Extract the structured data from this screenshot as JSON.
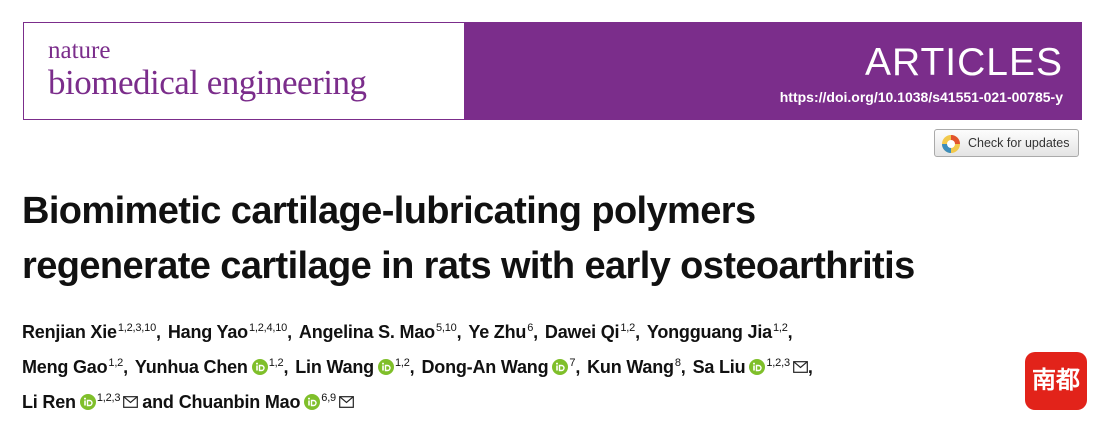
{
  "header": {
    "journal_top": "nature",
    "journal_bottom": "biomedical engineering",
    "section": "ARTICLES",
    "doi": "https://doi.org/10.1038/s41551-021-00785-y"
  },
  "check_updates": "Check for updates",
  "title": [
    "Biomimetic cartilage-lubricating polymers",
    "regenerate cartilage in rats with early osteoarthritis"
  ],
  "author_lines": [
    [
      {
        "name": "Renjian Xie",
        "sup": "1,2,3,10",
        "after": ","
      },
      {
        "name": "Hang Yao",
        "sup": "1,2,4,10",
        "after": ","
      },
      {
        "name": "Angelina S. Mao",
        "sup": "5,10",
        "after": ","
      },
      {
        "name": "Ye Zhu",
        "sup": "6",
        "after": ","
      },
      {
        "name": "Dawei Qi",
        "sup": "1,2",
        "after": ","
      },
      {
        "name": "Yongguang Jia",
        "sup": "1,2",
        "after": ","
      }
    ],
    [
      {
        "name": "Meng Gao",
        "sup": "1,2",
        "after": ","
      },
      {
        "name": "Yunhua Chen",
        "orcid": true,
        "sup": "1,2",
        "after": ","
      },
      {
        "name": "Lin Wang",
        "orcid": true,
        "sup": "1,2",
        "after": ","
      },
      {
        "name": "Dong-An Wang",
        "orcid": true,
        "sup": "7",
        "after": ","
      },
      {
        "name": "Kun Wang",
        "sup": "8",
        "after": ","
      },
      {
        "name": "Sa Liu",
        "orcid": true,
        "sup": "1,2,3",
        "mail": true,
        "after": ","
      }
    ],
    [
      {
        "name": "Li Ren",
        "orcid": true,
        "sup": "1,2,3",
        "mail": true,
        "after": "and"
      },
      {
        "name": "Chuanbin Mao",
        "orcid": true,
        "sup": "6,9",
        "mail": true
      }
    ]
  ],
  "watermark": "南都"
}
